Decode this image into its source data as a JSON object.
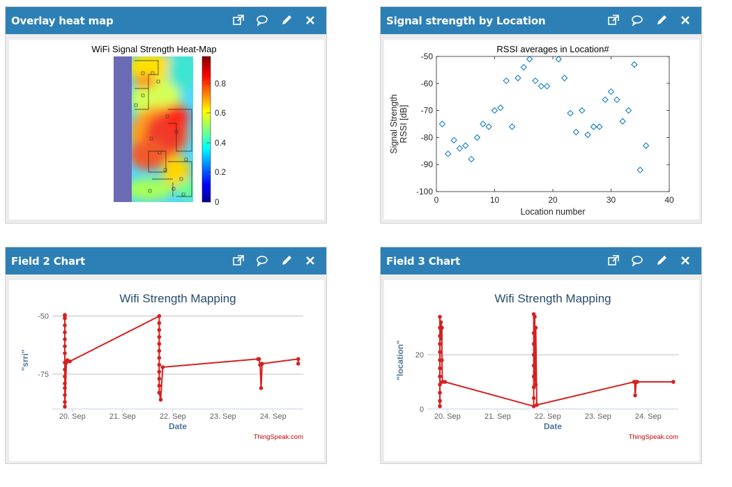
{
  "widgets": [
    {
      "title": "Overlay heat map"
    },
    {
      "title": "Signal strength by Location"
    },
    {
      "title": "Field 2 Chart"
    },
    {
      "title": "Field 3 Chart"
    }
  ],
  "heatmap": {
    "title": "WiFi Signal Strength Heat-Map",
    "colorbar_ticks": [
      "0",
      "0.2",
      "0.4",
      "0.6",
      "0.8"
    ]
  },
  "chart_data": [
    {
      "type": "scatter",
      "title": "RSSI averages in Location#",
      "xlabel": "Location number",
      "ylabel_line1": "Signal Strength",
      "ylabel_line2": "RSSI [dB]",
      "xlim": [
        0,
        40
      ],
      "ylim": [
        -100,
        -50
      ],
      "xticks": [
        "0",
        "10",
        "20",
        "30",
        "40"
      ],
      "yticks": [
        "-100",
        "-90",
        "-80",
        "-70",
        "-60",
        "-50"
      ],
      "marker_color": "#0072bd",
      "x": [
        1,
        2,
        3,
        4,
        5,
        6,
        7,
        8,
        9,
        10,
        11,
        12,
        13,
        14,
        15,
        16,
        17,
        18,
        19,
        21,
        22,
        23,
        24,
        25,
        26,
        27,
        28,
        29,
        30,
        31,
        32,
        33,
        34,
        35,
        36
      ],
      "y": [
        -75,
        -86,
        -81,
        -84,
        -83,
        -88,
        -80,
        -75,
        -76,
        -70,
        -69,
        -59,
        -76,
        -58,
        -54,
        -51,
        -59,
        -61,
        -61,
        -51,
        -58,
        -71,
        -78,
        -70,
        -79,
        -76,
        -76,
        -66,
        -63,
        -66,
        -74,
        -70,
        -53,
        -92,
        -83
      ]
    },
    {
      "type": "line",
      "title": "Wifi Strength Mapping",
      "xlabel": "Date",
      "ylabel": "\"srri\"",
      "xticks": [
        "20. Sep",
        "21. Sep",
        "22. Sep",
        "23. Sep",
        "24. Sep"
      ],
      "yticks": [
        "-50",
        "-75"
      ],
      "xlim": [
        19.6,
        24.6
      ],
      "ylim": [
        -90,
        -48
      ],
      "credit": "ThingSpeak.com",
      "color": "#d62020",
      "x": [
        19.85,
        19.85,
        19.85,
        19.85,
        19.85,
        19.85,
        19.85,
        19.85,
        19.85,
        19.85,
        19.85,
        19.85,
        19.85,
        19.85,
        19.85,
        19.85,
        19.88,
        19.9,
        19.95,
        21.73,
        21.73,
        21.73,
        21.73,
        21.73,
        21.73,
        21.73,
        21.73,
        21.73,
        21.73,
        21.73,
        21.73,
        21.76,
        21.8,
        23.7,
        23.72,
        23.74,
        23.76,
        23.78,
        24.5,
        24.5
      ],
      "y": [
        -49.5,
        -50,
        -51,
        -54,
        -57,
        -60,
        -63,
        -66,
        -70,
        -73,
        -76,
        -79,
        -81,
        -84,
        -87,
        -89,
        -70,
        -69,
        -69.5,
        -50,
        -53,
        -56,
        -59,
        -62,
        -65,
        -68,
        -71,
        -74,
        -77,
        -80,
        -83,
        -86,
        -72,
        -68.5,
        -68.5,
        -71,
        -81,
        -70.5,
        -68.5,
        -70.5
      ]
    },
    {
      "type": "line",
      "title": "Wifi Strength Mapping",
      "xlabel": "Date",
      "ylabel": "\"location\"",
      "xticks": [
        "20. Sep",
        "21. Sep",
        "22. Sep",
        "23. Sep",
        "24. Sep"
      ],
      "yticks": [
        "0",
        "20"
      ],
      "xlim": [
        19.6,
        24.6
      ],
      "ylim": [
        0,
        36
      ],
      "credit": "ThingSpeak.com",
      "color": "#d62020",
      "x": [
        19.85,
        19.85,
        19.85,
        19.85,
        19.85,
        19.85,
        19.85,
        19.85,
        19.85,
        19.85,
        19.85,
        19.85,
        19.87,
        19.87,
        19.89,
        19.89,
        19.9,
        19.95,
        21.72,
        21.72,
        21.72,
        21.72,
        21.72,
        21.72,
        21.72,
        21.72,
        21.72,
        21.74,
        21.74,
        21.76,
        21.76,
        21.78,
        23.72,
        23.73,
        23.74,
        23.76,
        23.78,
        24.5
      ],
      "y": [
        1,
        3,
        6,
        9,
        12,
        15,
        18,
        21,
        24,
        27,
        30,
        34,
        26,
        32,
        30,
        18,
        10,
        10,
        1,
        4,
        8,
        12,
        16,
        20,
        24,
        28,
        35,
        34,
        11,
        9,
        30,
        1.5,
        10,
        10,
        5,
        10,
        10,
        10
      ]
    }
  ]
}
